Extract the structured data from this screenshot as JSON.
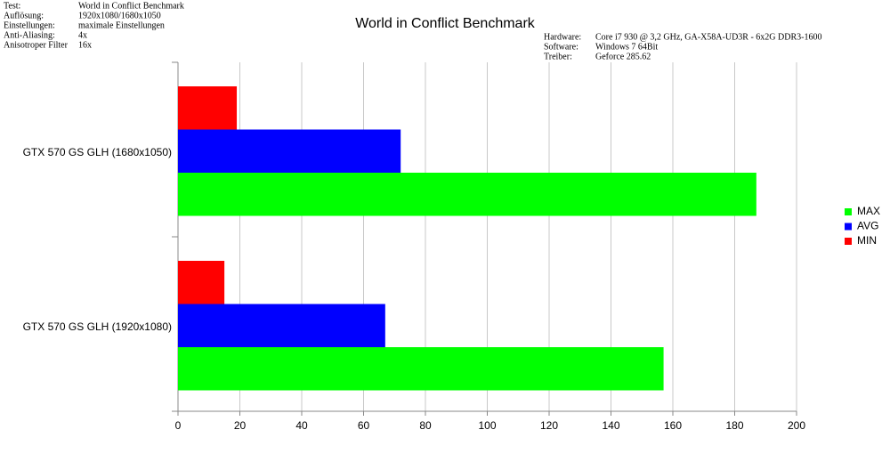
{
  "info_left": [
    {
      "label": "Test:",
      "value": "World in Conflict Benchmark"
    },
    {
      "label": "Auflösung:",
      "value": "1920x1080/1680x1050"
    },
    {
      "label": "Einstellungen:",
      "value": "maximale Einstellungen"
    },
    {
      "label": "Anti-Aliasing:",
      "value": "4x"
    },
    {
      "label": "Anisotroper Filter",
      "value": "16x"
    }
  ],
  "info_right": [
    {
      "label": "Hardware:",
      "value": "Core i7 930 @ 3,2 GHz, GA-X58A-UD3R - 6x2G DDR3-1600"
    },
    {
      "label": "Software:",
      "value": "Windows 7 64Bit"
    },
    {
      "label": "Treiber:",
      "value": "Geforce 285.62"
    }
  ],
  "chart_data": {
    "type": "hbar",
    "title": "World in Conflict Benchmark",
    "categories": [
      "GTX 570 GS GLH (1680x1050)",
      "GTX 570 GS GLH (1920x1080)"
    ],
    "series": [
      {
        "name": "MIN",
        "color": "#ff0000",
        "values": [
          19,
          15
        ]
      },
      {
        "name": "AVG",
        "color": "#0000ff",
        "values": [
          72,
          67
        ]
      },
      {
        "name": "MAX",
        "color": "#00ff00",
        "values": [
          187,
          157
        ]
      }
    ],
    "xlim": [
      0,
      200
    ],
    "xticks": [
      0,
      20,
      40,
      60,
      80,
      100,
      120,
      140,
      160,
      180,
      200
    ],
    "grid": true,
    "legend": "right"
  }
}
